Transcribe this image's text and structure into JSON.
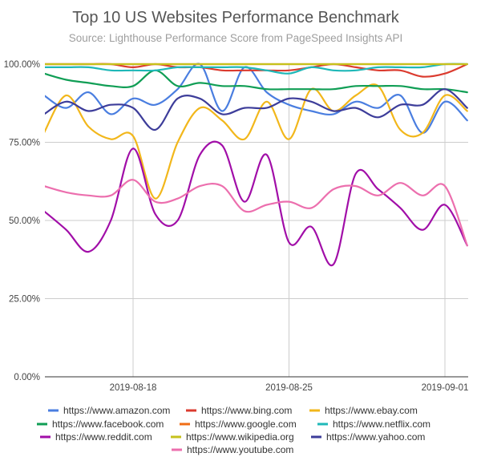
{
  "chart_data": {
    "type": "line",
    "title": "Top 10 US Websites Performance Benchmark",
    "subtitle": "Source: Lighthouse Performance Score from PageSpeed Insights API",
    "xlabel": "",
    "ylabel": "",
    "y_ticks": [
      "0.00%",
      "25.00%",
      "50.00%",
      "75.00%",
      "100.00%"
    ],
    "y_tick_values": [
      0,
      25,
      50,
      75,
      100
    ],
    "ylim": [
      0,
      100
    ],
    "x_ticks": [
      "2019-08-18",
      "2019-08-25",
      "2019-09-01"
    ],
    "x_tick_values": [
      "2019-08-18",
      "2019-08-25",
      "2019-09-01"
    ],
    "x_start": "2019-08-14",
    "x_end": "2019-09-01",
    "x": [
      "2019-08-14",
      "2019-08-15",
      "2019-08-16",
      "2019-08-17",
      "2019-08-18",
      "2019-08-19",
      "2019-08-20",
      "2019-08-21",
      "2019-08-22",
      "2019-08-23",
      "2019-08-24",
      "2019-08-25",
      "2019-08-26",
      "2019-08-27",
      "2019-08-28",
      "2019-08-29",
      "2019-08-30",
      "2019-08-31",
      "2019-09-01",
      "2019-09-02"
    ],
    "grid": true,
    "legend_position": "bottom",
    "series": [
      {
        "name": "https://www.amazon.com",
        "color": "#4a7ee0",
        "values": [
          90,
          86,
          91,
          84,
          89,
          87,
          92,
          100,
          85,
          99,
          91,
          87,
          85,
          84,
          88,
          86,
          90,
          78,
          88,
          82
        ]
      },
      {
        "name": "https://www.bing.com",
        "color": "#db3b2f",
        "values": [
          100,
          100,
          100,
          100,
          99,
          100,
          99,
          99,
          98,
          98,
          98,
          98,
          99,
          100,
          99,
          98,
          98,
          96,
          97,
          100
        ]
      },
      {
        "name": "https://www.ebay.com",
        "color": "#f2b71b",
        "values": [
          78,
          90,
          80,
          76,
          77,
          57,
          75,
          86,
          82,
          76,
          88,
          76,
          92,
          85,
          90,
          93,
          79,
          78,
          90,
          85
        ]
      },
      {
        "name": "https://www.facebook.com",
        "color": "#109e55",
        "values": [
          97,
          95,
          94,
          93,
          93,
          98,
          93,
          94,
          93,
          93,
          92,
          92,
          92,
          92,
          93,
          93,
          93,
          92,
          92,
          91
        ]
      },
      {
        "name": "https://www.google.com",
        "color": "#f06d15",
        "values": [
          100,
          100,
          100,
          100,
          100,
          100,
          100,
          100,
          100,
          100,
          100,
          100,
          100,
          100,
          100,
          100,
          100,
          100,
          100,
          100
        ]
      },
      {
        "name": "https://www.netflix.com",
        "color": "#1fb8b8",
        "values": [
          99,
          99,
          99,
          98,
          98,
          98,
          99,
          99,
          99,
          99,
          98,
          97,
          99,
          98,
          98,
          99,
          99,
          99,
          100,
          100
        ]
      },
      {
        "name": "https://www.reddit.com",
        "color": "#a10ea8",
        "values": [
          53,
          47,
          40,
          50,
          73,
          52,
          50,
          71,
          74,
          56,
          71,
          43,
          48,
          36,
          65,
          60,
          54,
          47,
          55,
          42
        ]
      },
      {
        "name": "https://www.wikipedia.org",
        "color": "#c6c21c",
        "values": [
          100,
          100,
          100,
          100,
          100,
          100,
          100,
          100,
          100,
          100,
          100,
          100,
          100,
          100,
          100,
          100,
          100,
          100,
          100,
          100
        ]
      },
      {
        "name": "https://www.yahoo.com",
        "color": "#3d3d9a",
        "values": [
          84,
          88,
          85,
          87,
          86,
          79,
          89,
          89,
          84,
          86,
          86,
          89,
          88,
          85,
          86,
          83,
          87,
          87,
          92,
          86
        ]
      },
      {
        "name": "https://www.youtube.com",
        "color": "#ec6fae",
        "values": [
          61,
          59,
          58,
          58,
          63,
          56,
          57,
          61,
          61,
          53,
          55,
          56,
          54,
          60,
          61,
          58,
          62,
          58,
          61,
          42
        ]
      }
    ]
  }
}
